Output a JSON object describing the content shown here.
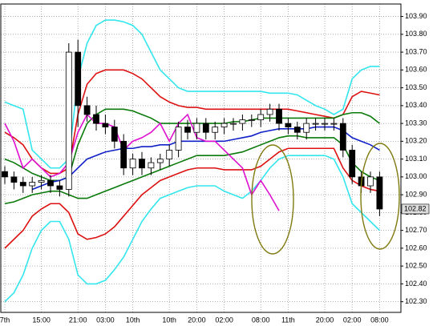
{
  "chart_data": {
    "type": "candlestick",
    "categories": [
      "7th",
      null,
      null,
      null,
      "15:00",
      null,
      null,
      null,
      "21:00",
      null,
      null,
      "03:00",
      null,
      null,
      "10th",
      null,
      null,
      null,
      "10th",
      null,
      null,
      "20:00",
      null,
      null,
      "02:00",
      null,
      null,
      null,
      "08:00",
      null,
      null,
      "11th",
      null,
      null,
      null,
      "20:00",
      null,
      null,
      "02:00",
      null,
      null,
      "08:00"
    ],
    "open": [
      103.03,
      103.0,
      102.97,
      102.95,
      102.97,
      102.98,
      102.95,
      102.93,
      103.7,
      103.4,
      103.35,
      103.3,
      103.28,
      103.2,
      103.05,
      103.1,
      103.05,
      103.08,
      103.1,
      103.15,
      103.28,
      103.25,
      103.3,
      103.25,
      103.28,
      103.3,
      103.3,
      103.32,
      103.32,
      103.35,
      103.38,
      103.3,
      103.28,
      103.25,
      103.3,
      103.3,
      103.3,
      103.3,
      103.15,
      103.0,
      102.95,
      103.0
    ],
    "high": [
      103.06,
      103.03,
      103.0,
      103.0,
      103.01,
      103.01,
      102.98,
      103.75,
      103.77,
      103.45,
      103.4,
      103.35,
      103.32,
      103.24,
      103.13,
      103.14,
      103.11,
      103.13,
      103.18,
      103.31,
      103.32,
      103.33,
      103.33,
      103.31,
      103.33,
      103.33,
      103.35,
      103.35,
      103.38,
      103.41,
      103.41,
      103.33,
      103.31,
      103.33,
      103.33,
      103.33,
      103.33,
      103.33,
      103.18,
      103.03,
      103.03,
      103.03
    ],
    "low": [
      102.96,
      102.93,
      102.91,
      102.91,
      102.93,
      102.91,
      102.89,
      102.89,
      103.28,
      103.31,
      103.26,
      103.24,
      103.16,
      103.01,
      103.01,
      103.01,
      103.01,
      103.04,
      103.06,
      103.11,
      103.21,
      103.21,
      103.21,
      103.21,
      103.24,
      103.26,
      103.26,
      103.28,
      103.28,
      103.31,
      103.26,
      103.24,
      103.21,
      103.21,
      103.26,
      103.26,
      103.26,
      103.11,
      102.96,
      102.91,
      102.91,
      102.78
    ],
    "close": [
      103.0,
      102.97,
      102.95,
      102.97,
      102.98,
      102.95,
      102.93,
      103.7,
      103.4,
      103.35,
      103.3,
      103.28,
      103.2,
      103.05,
      103.1,
      103.05,
      103.08,
      103.1,
      103.15,
      103.28,
      103.25,
      103.3,
      103.25,
      103.28,
      103.3,
      103.3,
      103.32,
      103.32,
      103.35,
      103.38,
      103.3,
      103.28,
      103.25,
      103.3,
      103.3,
      103.3,
      103.3,
      103.15,
      103.0,
      102.95,
      103.0,
      102.82
    ],
    "up_color": "#ffffff",
    "down_color": "#000000",
    "lines": [
      {
        "color": "#33e6ee",
        "values": [
          103.42,
          103.4,
          103.38,
          103.15,
          103.1,
          103.05,
          103.05,
          103.1,
          103.55,
          103.75,
          103.85,
          103.88,
          103.88,
          103.87,
          103.85,
          103.8,
          103.7,
          103.6,
          103.55,
          103.5,
          103.48,
          103.48,
          103.48,
          103.48,
          103.48,
          103.48,
          103.48,
          103.48,
          103.48,
          103.47,
          103.47,
          103.47,
          103.46,
          103.43,
          103.4,
          103.38,
          103.35,
          103.38,
          103.55,
          103.6,
          103.62,
          103.62
        ]
      },
      {
        "color": "#dd1111",
        "values": [
          103.25,
          103.22,
          103.18,
          103.1,
          103.05,
          103.02,
          103.02,
          103.05,
          103.35,
          103.52,
          103.58,
          103.6,
          103.6,
          103.6,
          103.58,
          103.55,
          103.5,
          103.45,
          103.42,
          103.4,
          103.39,
          103.39,
          103.38,
          103.38,
          103.38,
          103.38,
          103.38,
          103.38,
          103.38,
          103.38,
          103.38,
          103.38,
          103.37,
          103.36,
          103.35,
          103.34,
          103.33,
          103.35,
          103.45,
          103.48,
          103.47,
          103.46
        ]
      },
      {
        "color": "#0a7a0a",
        "values": [
          103.1,
          103.08,
          103.05,
          103.02,
          103.0,
          102.98,
          102.98,
          103.0,
          103.18,
          103.3,
          103.35,
          103.38,
          103.38,
          103.38,
          103.37,
          103.35,
          103.33,
          103.3,
          103.3,
          103.3,
          103.3,
          103.3,
          103.3,
          103.3,
          103.3,
          103.31,
          103.31,
          103.32,
          103.33,
          103.33,
          103.33,
          103.33,
          103.33,
          103.33,
          103.33,
          103.33,
          103.33,
          103.35,
          103.36,
          103.36,
          103.34,
          103.3
        ]
      },
      {
        "color": "#1020c8",
        "values": [
          null,
          null,
          null,
          102.93,
          102.95,
          102.97,
          102.98,
          103.0,
          103.05,
          103.1,
          103.12,
          103.14,
          103.15,
          103.16,
          103.16,
          103.17,
          103.17,
          103.18,
          103.18,
          103.2,
          103.2,
          103.2,
          103.2,
          103.2,
          103.2,
          103.21,
          103.22,
          103.23,
          103.25,
          103.26,
          103.27,
          103.27,
          103.27,
          103.27,
          103.28,
          103.28,
          103.28,
          103.26,
          103.22,
          103.2,
          103.18,
          103.15
        ]
      },
      {
        "color": "#0a7a0a",
        "values": [
          102.85,
          102.86,
          102.88,
          102.9,
          102.91,
          102.92,
          102.92,
          102.9,
          102.88,
          102.88,
          102.9,
          102.92,
          102.94,
          102.96,
          102.98,
          103.0,
          103.02,
          103.04,
          103.06,
          103.08,
          103.1,
          103.12,
          103.12,
          103.12,
          103.12,
          103.13,
          103.14,
          103.16,
          103.18,
          103.2,
          103.22,
          103.23,
          103.23,
          103.22,
          103.22,
          103.22,
          103.22,
          103.18,
          103.08,
          103.03,
          103.0,
          102.98
        ]
      },
      {
        "color": "#dd1111",
        "values": [
          102.6,
          102.65,
          102.7,
          102.78,
          102.82,
          102.85,
          102.85,
          102.8,
          102.68,
          102.65,
          102.66,
          102.68,
          102.72,
          102.78,
          102.84,
          102.9,
          102.94,
          102.98,
          103.0,
          103.02,
          103.04,
          103.05,
          103.05,
          103.05,
          103.04,
          103.04,
          103.04,
          103.04,
          103.06,
          103.1,
          103.14,
          103.16,
          103.16,
          103.16,
          103.16,
          103.16,
          103.16,
          103.05,
          102.98,
          102.95,
          102.93,
          102.92
        ]
      },
      {
        "color": "#33e6ee",
        "values": [
          102.3,
          102.35,
          102.45,
          102.6,
          102.7,
          102.75,
          102.75,
          102.65,
          102.45,
          102.4,
          102.4,
          102.42,
          102.48,
          102.55,
          102.65,
          102.75,
          102.82,
          102.88,
          102.9,
          102.92,
          102.94,
          102.95,
          102.95,
          102.95,
          102.92,
          102.9,
          102.88,
          102.92,
          102.98,
          103.05,
          103.1,
          103.12,
          103.12,
          103.12,
          103.12,
          103.12,
          103.1,
          103.0,
          102.85,
          102.8,
          102.75,
          102.7
        ]
      },
      {
        "color": "#e010d0",
        "values": [
          103.3,
          103.2,
          103.05,
          103.1,
          103.05,
          103.0,
          103.02,
          103.08,
          103.25,
          103.35,
          103.3,
          103.3,
          103.28,
          103.15,
          103.2,
          103.22,
          103.25,
          103.3,
          103.2,
          103.3,
          103.35,
          103.22,
          103.2,
          103.2,
          103.15,
          103.1,
          103.05,
          102.9,
          102.98,
          102.9,
          102.81,
          null,
          null,
          null,
          null,
          null,
          null,
          null,
          null,
          null,
          null,
          null
        ]
      }
    ],
    "last_price": {
      "value": 102.82,
      "label": "102.82"
    },
    "ylim": [
      102.24,
      103.97
    ],
    "yticks": [
      {
        "value": 102.3,
        "label": "102.30"
      },
      {
        "value": 102.4,
        "label": "102.40"
      },
      {
        "value": 102.5,
        "label": "102.50"
      },
      {
        "value": 102.6,
        "label": "102.60"
      },
      {
        "value": 102.7,
        "label": "102.70"
      },
      {
        "value": 102.8,
        "label": "102.80"
      },
      {
        "value": 102.9,
        "label": "102.90"
      },
      {
        "value": 103,
        "label": "103.00"
      },
      {
        "value": 103.1,
        "label": "103.10"
      },
      {
        "value": 103.2,
        "label": "103.20"
      },
      {
        "value": 103.3,
        "label": "103.30"
      },
      {
        "value": 103.4,
        "label": "103.40"
      },
      {
        "value": 103.5,
        "label": "103.50"
      },
      {
        "value": 103.6,
        "label": "103.60"
      },
      {
        "value": 103.7,
        "label": "103.70"
      },
      {
        "value": 103.8,
        "label": "103.80"
      },
      {
        "value": 103.9,
        "label": "103.90"
      }
    ],
    "grid": true
  }
}
